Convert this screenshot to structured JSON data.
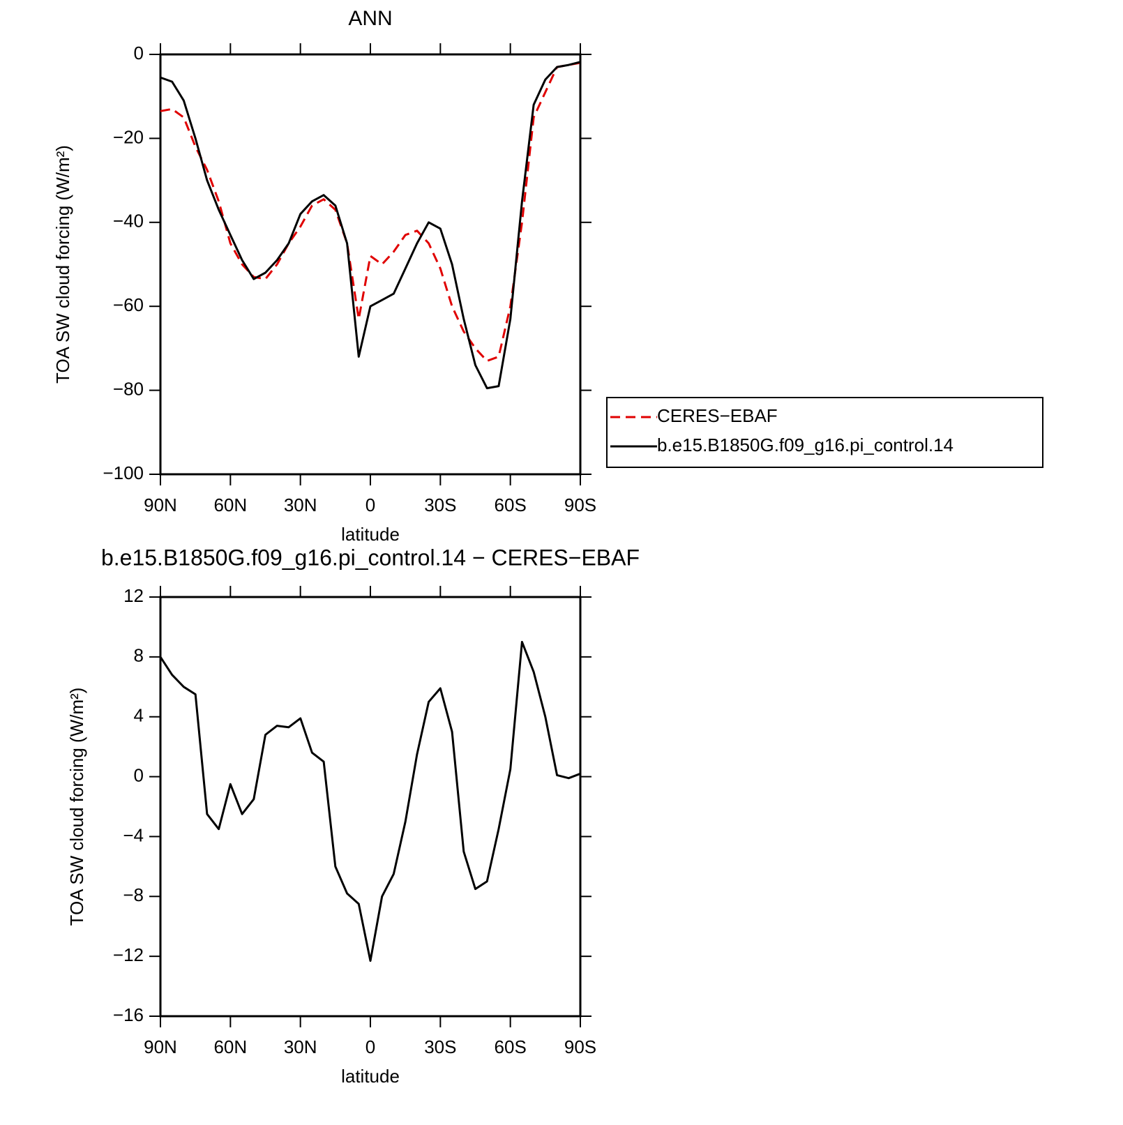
{
  "chart_data": [
    {
      "type": "line",
      "title": "ANN",
      "xlabel": "latitude",
      "ylabel": "TOA SW cloud forcing (W/m²)",
      "x": [
        90,
        85,
        80,
        75,
        70,
        65,
        60,
        55,
        50,
        45,
        40,
        35,
        30,
        25,
        20,
        15,
        10,
        5,
        0,
        -5,
        -10,
        -15,
        -20,
        -25,
        -30,
        -35,
        -40,
        -45,
        -50,
        -55,
        -60,
        -65,
        -70,
        -75,
        -80,
        -85,
        -90
      ],
      "xlim": [
        90,
        -90
      ],
      "xticks": [
        {
          "value": 90,
          "label": "90N"
        },
        {
          "value": 60,
          "label": "60N"
        },
        {
          "value": 30,
          "label": "30N"
        },
        0,
        {
          "value": -30,
          "label": "30S"
        },
        {
          "value": -60,
          "label": "60S"
        },
        {
          "value": -90,
          "label": "90S"
        }
      ],
      "ylim": [
        -100,
        0
      ],
      "yticks": [
        0,
        {
          "value": -20,
          "label": "−20"
        },
        {
          "value": -40,
          "label": "−40"
        },
        {
          "value": -60,
          "label": "−60"
        },
        {
          "value": -80,
          "label": "−80"
        },
        {
          "value": -100,
          "label": "−100"
        }
      ],
      "legend": "right",
      "series": [
        {
          "name": "CERES−EBAF",
          "color": "#e00000",
          "dash": true,
          "values": [
            -13.5,
            -13,
            -15,
            -22,
            -27.5,
            -35,
            -45,
            -50,
            -53,
            -53.5,
            -50,
            -45,
            -41,
            -36,
            -34.5,
            -37,
            -45,
            -63,
            -48,
            -50,
            -47,
            -43,
            -42,
            -45,
            -51,
            -60,
            -66,
            -70,
            -73,
            -72,
            -60,
            -40,
            -15,
            -9,
            -3,
            -2.5,
            -2
          ]
        },
        {
          "name": "b.e15.B1850G.f09_g16.pi_control.14",
          "color": "#000000",
          "dash": false,
          "values": [
            -5.5,
            -6.5,
            -11,
            -20,
            -30,
            -37,
            -43,
            -49,
            -53.5,
            -52,
            -49,
            -45,
            -38,
            -35,
            -33.5,
            -36,
            -45,
            -72,
            -60,
            -58.5,
            -57,
            -51,
            -45,
            -40,
            -41.5,
            -50,
            -63,
            -74,
            -79.5,
            -79,
            -63,
            -35,
            -12,
            -6,
            -3,
            -2.5,
            -1.8
          ]
        }
      ]
    },
    {
      "type": "line",
      "title": "b.e15.B1850G.f09_g16.pi_control.14 − CERES−EBAF",
      "xlabel": "latitude",
      "ylabel": "TOA SW cloud forcing (W/m²)",
      "x": [
        90,
        85,
        80,
        75,
        70,
        65,
        60,
        55,
        50,
        45,
        40,
        35,
        30,
        25,
        20,
        15,
        10,
        5,
        0,
        -5,
        -10,
        -15,
        -20,
        -25,
        -30,
        -35,
        -40,
        -45,
        -50,
        -55,
        -60,
        -65,
        -70,
        -75,
        -80,
        -85,
        -90
      ],
      "xlim": [
        90,
        -90
      ],
      "xticks": [
        {
          "value": 90,
          "label": "90N"
        },
        {
          "value": 60,
          "label": "60N"
        },
        {
          "value": 30,
          "label": "30N"
        },
        0,
        {
          "value": -30,
          "label": "30S"
        },
        {
          "value": -60,
          "label": "60S"
        },
        {
          "value": -90,
          "label": "90S"
        }
      ],
      "ylim": [
        -16,
        12
      ],
      "yticks": [
        12,
        8,
        4,
        0,
        {
          "value": -4,
          "label": "−4"
        },
        {
          "value": -8,
          "label": "−8"
        },
        {
          "value": -12,
          "label": "−12"
        },
        {
          "value": -16,
          "label": "−16"
        }
      ],
      "series": [
        {
          "color": "#000000",
          "dash": false,
          "values": [
            8,
            6.8,
            6,
            5.5,
            -2.5,
            -3.5,
            -0.5,
            -2.5,
            -1.5,
            2.8,
            3.4,
            3.3,
            3.9,
            1.6,
            1,
            -6,
            -7.8,
            -8.5,
            -12.3,
            -8,
            -6.5,
            -3,
            1.5,
            5,
            5.9,
            3,
            -5,
            -7.5,
            -7,
            -3.5,
            0.5,
            9,
            7,
            4,
            0.1,
            -0.1,
            0.2
          ]
        }
      ]
    }
  ]
}
